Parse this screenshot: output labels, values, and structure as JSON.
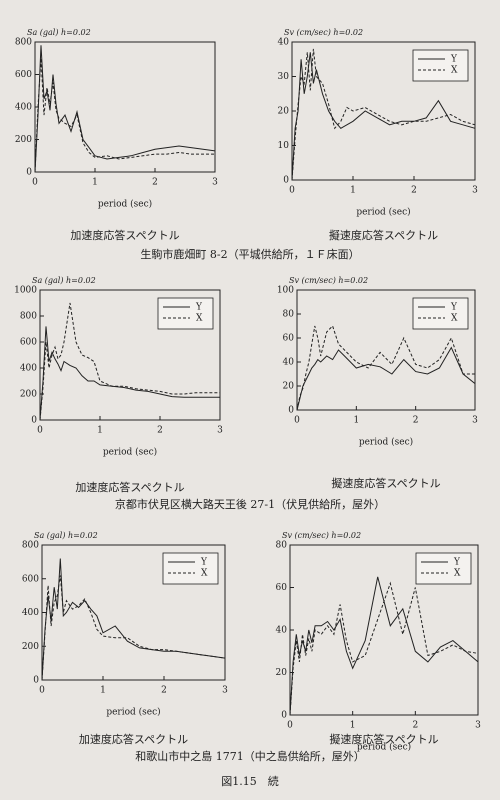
{
  "chart_data": [
    {
      "type": "line",
      "title": "Sa (gal) h=0.02",
      "xlabel": "period (sec)",
      "caption": "加速度応答スペクトル",
      "legend": false,
      "x": [
        0,
        0.05,
        0.1,
        0.15,
        0.2,
        0.25,
        0.3,
        0.35,
        0.4,
        0.5,
        0.6,
        0.7,
        0.8,
        0.9,
        1.0,
        1.2,
        1.4,
        1.6,
        1.8,
        2.0,
        2.2,
        2.4,
        2.6,
        2.8,
        3.0
      ],
      "xlim": [
        0,
        3
      ],
      "xticks": [
        0,
        1,
        2,
        3
      ],
      "ylim": [
        0,
        800
      ],
      "yticks": [
        0,
        200,
        400,
        600,
        800
      ],
      "series": [
        {
          "name": "Y",
          "color": "#222222",
          "style": "solid",
          "values": [
            0,
            350,
            780,
            450,
            500,
            380,
            600,
            420,
            300,
            350,
            250,
            370,
            200,
            150,
            100,
            80,
            90,
            100,
            120,
            140,
            150,
            160,
            150,
            140,
            130
          ]
        },
        {
          "name": "X",
          "color": "#222222",
          "style": "dashed",
          "values": [
            0,
            400,
            700,
            350,
            520,
            420,
            550,
            380,
            330,
            300,
            280,
            350,
            180,
            120,
            90,
            100,
            80,
            90,
            100,
            110,
            110,
            120,
            110,
            110,
            110
          ]
        }
      ]
    },
    {
      "type": "line",
      "title": "Sv (cm/sec) h=0.02",
      "xlabel": "period (sec)",
      "caption": "擬速度応答スペクトル",
      "legend": true,
      "x": [
        0,
        0.05,
        0.1,
        0.15,
        0.2,
        0.25,
        0.3,
        0.35,
        0.4,
        0.5,
        0.6,
        0.7,
        0.8,
        0.9,
        1.0,
        1.2,
        1.4,
        1.6,
        1.8,
        2.0,
        2.2,
        2.4,
        2.6,
        2.8,
        3.0
      ],
      "xlim": [
        0,
        3
      ],
      "xticks": [
        0,
        1,
        2,
        3
      ],
      "ylim": [
        0,
        40
      ],
      "yticks": [
        0,
        10,
        20,
        30,
        40
      ],
      "series": [
        {
          "name": "Y",
          "color": "#222222",
          "style": "solid",
          "values": [
            0,
            15,
            20,
            35,
            25,
            30,
            37,
            28,
            32,
            25,
            20,
            17,
            15,
            16,
            17,
            20,
            18,
            16,
            17,
            17,
            18,
            23,
            17,
            16,
            15
          ]
        },
        {
          "name": "X",
          "color": "#222222",
          "style": "dashed",
          "values": [
            0,
            12,
            22,
            30,
            28,
            37,
            26,
            38,
            30,
            28,
            22,
            15,
            17,
            21,
            20,
            21,
            19,
            17,
            16,
            17,
            17,
            18,
            19,
            17,
            16
          ]
        }
      ]
    },
    {
      "type": "line",
      "title": "Sa (gal) h=0.02",
      "xlabel": "period (sec)",
      "caption": "加速度応答スペクトル",
      "legend": true,
      "x": [
        0,
        0.05,
        0.1,
        0.15,
        0.2,
        0.25,
        0.3,
        0.35,
        0.4,
        0.5,
        0.6,
        0.7,
        0.8,
        0.9,
        1.0,
        1.2,
        1.4,
        1.6,
        1.8,
        2.0,
        2.2,
        2.4,
        2.6,
        2.8,
        3.0
      ],
      "xlim": [
        0,
        3
      ],
      "xticks": [
        0,
        1,
        2,
        3
      ],
      "ylim": [
        0,
        1000
      ],
      "yticks": [
        0,
        200,
        400,
        600,
        800,
        1000
      ],
      "series": [
        {
          "name": "Y",
          "color": "#222222",
          "style": "solid",
          "values": [
            0,
            300,
            720,
            450,
            520,
            470,
            430,
            380,
            450,
            420,
            400,
            340,
            300,
            300,
            270,
            260,
            250,
            230,
            220,
            200,
            180,
            175,
            175,
            175,
            175
          ]
        },
        {
          "name": "X",
          "color": "#222222",
          "style": "dashed",
          "values": [
            0,
            250,
            600,
            400,
            500,
            560,
            470,
            500,
            600,
            900,
            600,
            500,
            480,
            450,
            300,
            260,
            260,
            240,
            230,
            220,
            200,
            200,
            210,
            210,
            210
          ]
        }
      ]
    },
    {
      "type": "line",
      "title": "Sv (cm/sec) h=0.02",
      "xlabel": "period (sec)",
      "caption": "擬速度応答スペクトル",
      "legend": true,
      "x": [
        0,
        0.05,
        0.1,
        0.15,
        0.2,
        0.25,
        0.3,
        0.35,
        0.4,
        0.5,
        0.6,
        0.7,
        0.8,
        0.9,
        1.0,
        1.2,
        1.4,
        1.6,
        1.8,
        2.0,
        2.2,
        2.4,
        2.6,
        2.8,
        3.0
      ],
      "xlim": [
        0,
        3
      ],
      "xticks": [
        0,
        1,
        2,
        3
      ],
      "ylim": [
        0,
        100
      ],
      "yticks": [
        0,
        20,
        40,
        60,
        80,
        100
      ],
      "series": [
        {
          "name": "Y",
          "color": "#222222",
          "style": "solid",
          "values": [
            0,
            10,
            20,
            25,
            30,
            35,
            38,
            42,
            40,
            45,
            42,
            50,
            45,
            40,
            35,
            38,
            36,
            30,
            42,
            32,
            30,
            35,
            52,
            30,
            22
          ]
        },
        {
          "name": "X",
          "color": "#222222",
          "style": "dashed",
          "values": [
            0,
            12,
            18,
            30,
            40,
            55,
            70,
            60,
            45,
            65,
            70,
            55,
            50,
            45,
            40,
            35,
            48,
            38,
            60,
            38,
            35,
            42,
            60,
            30,
            30
          ]
        }
      ]
    },
    {
      "type": "line",
      "title": "Sa (gal) h=0.02",
      "xlabel": "period (sec)",
      "caption": "加速度応答スペクトル",
      "legend": true,
      "x": [
        0,
        0.05,
        0.1,
        0.15,
        0.2,
        0.25,
        0.3,
        0.35,
        0.4,
        0.5,
        0.6,
        0.7,
        0.8,
        0.9,
        1.0,
        1.2,
        1.4,
        1.6,
        1.8,
        2.0,
        2.2,
        2.4,
        2.6,
        2.8,
        3.0
      ],
      "xlim": [
        0,
        3
      ],
      "xticks": [
        0,
        1,
        2,
        3
      ],
      "ylim": [
        0,
        800
      ],
      "yticks": [
        0,
        200,
        400,
        600,
        800
      ],
      "series": [
        {
          "name": "Y",
          "color": "#222222",
          "style": "solid",
          "values": [
            0,
            300,
            500,
            350,
            550,
            420,
            720,
            380,
            400,
            460,
            430,
            470,
            420,
            380,
            280,
            320,
            230,
            190,
            180,
            170,
            170,
            160,
            150,
            140,
            130
          ]
        },
        {
          "name": "X",
          "color": "#222222",
          "style": "dashed",
          "values": [
            0,
            280,
            560,
            320,
            460,
            500,
            620,
            400,
            470,
            420,
            440,
            480,
            400,
            300,
            260,
            250,
            250,
            200,
            180,
            180,
            170,
            160,
            150,
            140,
            130
          ]
        }
      ]
    },
    {
      "type": "line",
      "title": "Sv (cm/sec) h=0.02",
      "xlabel": "period (sec)",
      "caption": "擬速度応答スペクトル",
      "legend": true,
      "x": [
        0,
        0.05,
        0.1,
        0.15,
        0.2,
        0.25,
        0.3,
        0.35,
        0.4,
        0.5,
        0.6,
        0.7,
        0.8,
        0.9,
        1.0,
        1.2,
        1.4,
        1.6,
        1.8,
        2.0,
        2.2,
        2.4,
        2.6,
        2.8,
        3.0
      ],
      "xlim": [
        0,
        3
      ],
      "xticks": [
        0,
        1,
        2,
        3
      ],
      "ylim": [
        0,
        80
      ],
      "yticks": [
        0,
        20,
        40,
        60,
        80
      ],
      "series": [
        {
          "name": "Y",
          "color": "#222222",
          "style": "solid",
          "values": [
            0,
            25,
            38,
            28,
            35,
            30,
            40,
            34,
            42,
            42,
            44,
            40,
            45,
            30,
            22,
            35,
            65,
            42,
            50,
            30,
            25,
            32,
            35,
            30,
            25
          ]
        },
        {
          "name": "X",
          "color": "#222222",
          "style": "dashed",
          "values": [
            0,
            22,
            35,
            25,
            38,
            28,
            36,
            30,
            40,
            38,
            42,
            38,
            52,
            35,
            25,
            28,
            45,
            62,
            38,
            60,
            28,
            30,
            33,
            30,
            29
          ]
        }
      ]
    }
  ],
  "locations": [
    "生駒市鹿畑町 8-2（平城供給所，１Ｆ床面）",
    "京都市伏見区横大路天王後 27-1（伏見供給所，屋外）",
    "和歌山市中之島 1771（中之島供給所，屋外）"
  ],
  "figure_caption": "図1.15　続"
}
